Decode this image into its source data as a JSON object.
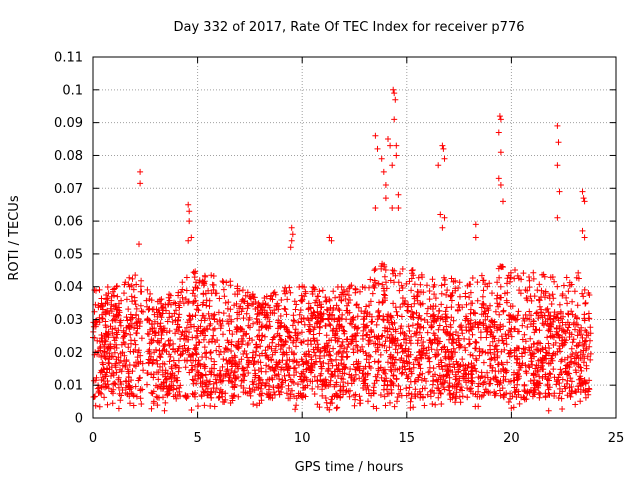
{
  "chart_data": {
    "type": "scatter",
    "title": "Day 332 of 2017, Rate Of TEC Index for receiver p776",
    "xlabel": "GPS time / hours",
    "ylabel": "ROTI / TECUs",
    "xlim": [
      0,
      25
    ],
    "ylim": [
      0,
      0.11
    ],
    "xticks": [
      0,
      5,
      10,
      15,
      20,
      25
    ],
    "xtick_labels": [
      "0",
      "5",
      "10",
      "15",
      "20",
      "25"
    ],
    "yticks": [
      0,
      0.01,
      0.02,
      0.03,
      0.04,
      0.05,
      0.06,
      0.07,
      0.08,
      0.09,
      0.1,
      0.11
    ],
    "ytick_labels": [
      "0",
      "0.01",
      "0.02",
      "0.03",
      "0.04",
      "0.05",
      "0.06",
      "0.07",
      "0.08",
      "0.09",
      "0.1",
      "0.11"
    ],
    "grid": true,
    "legend": "none",
    "marker": "plus",
    "color": "#ff0000",
    "series": [
      {
        "name": "ROTI",
        "density": {
          "x_range": [
            0,
            23.8
          ],
          "gap": [
            2.4,
            2.55
          ],
          "typical_range": [
            0.006,
            0.032
          ],
          "upper_envelope": [
            [
              0,
              0.04
            ],
            [
              1,
              0.04
            ],
            [
              2,
              0.045
            ],
            [
              3,
              0.036
            ],
            [
              4,
              0.04
            ],
            [
              5,
              0.046
            ],
            [
              6,
              0.043
            ],
            [
              7,
              0.041
            ],
            [
              8,
              0.036
            ],
            [
              9,
              0.04
            ],
            [
              10,
              0.041
            ],
            [
              11,
              0.04
            ],
            [
              12,
              0.04
            ],
            [
              13,
              0.043
            ],
            [
              14,
              0.048
            ],
            [
              15,
              0.046
            ],
            [
              16,
              0.043
            ],
            [
              17,
              0.043
            ],
            [
              18,
              0.043
            ],
            [
              19,
              0.045
            ],
            [
              20,
              0.048
            ],
            [
              21,
              0.045
            ],
            [
              22,
              0.045
            ],
            [
              23,
              0.046
            ],
            [
              23.8,
              0.04
            ]
          ]
        },
        "outliers": [
          [
            2.25,
            0.075
          ],
          [
            2.25,
            0.0715
          ],
          [
            2.2,
            0.053
          ],
          [
            4.55,
            0.065
          ],
          [
            4.6,
            0.063
          ],
          [
            4.6,
            0.06
          ],
          [
            4.55,
            0.054
          ],
          [
            4.7,
            0.055
          ],
          [
            9.5,
            0.058
          ],
          [
            9.55,
            0.056
          ],
          [
            9.5,
            0.054
          ],
          [
            9.45,
            0.052
          ],
          [
            11.3,
            0.055
          ],
          [
            11.4,
            0.054
          ],
          [
            13.5,
            0.086
          ],
          [
            13.6,
            0.082
          ],
          [
            13.5,
            0.064
          ],
          [
            13.8,
            0.079
          ],
          [
            13.9,
            0.075
          ],
          [
            14.0,
            0.071
          ],
          [
            14.0,
            0.067
          ],
          [
            14.1,
            0.085
          ],
          [
            14.2,
            0.083
          ],
          [
            14.3,
            0.077
          ],
          [
            14.35,
            0.1
          ],
          [
            14.4,
            0.099
          ],
          [
            14.45,
            0.097
          ],
          [
            14.4,
            0.091
          ],
          [
            14.5,
            0.083
          ],
          [
            14.5,
            0.08
          ],
          [
            14.3,
            0.064
          ],
          [
            14.6,
            0.068
          ],
          [
            14.6,
            0.064
          ],
          [
            16.5,
            0.077
          ],
          [
            16.7,
            0.083
          ],
          [
            16.75,
            0.082
          ],
          [
            16.8,
            0.079
          ],
          [
            16.6,
            0.062
          ],
          [
            16.8,
            0.061
          ],
          [
            16.7,
            0.058
          ],
          [
            18.3,
            0.059
          ],
          [
            18.3,
            0.055
          ],
          [
            19.45,
            0.092
          ],
          [
            19.5,
            0.091
          ],
          [
            19.4,
            0.087
          ],
          [
            19.5,
            0.081
          ],
          [
            19.4,
            0.073
          ],
          [
            19.5,
            0.071
          ],
          [
            19.6,
            0.066
          ],
          [
            22.2,
            0.089
          ],
          [
            22.25,
            0.084
          ],
          [
            22.2,
            0.077
          ],
          [
            22.3,
            0.069
          ],
          [
            22.2,
            0.061
          ],
          [
            23.4,
            0.069
          ],
          [
            23.45,
            0.067
          ],
          [
            23.5,
            0.066
          ],
          [
            23.4,
            0.057
          ],
          [
            23.5,
            0.055
          ]
        ]
      }
    ]
  }
}
